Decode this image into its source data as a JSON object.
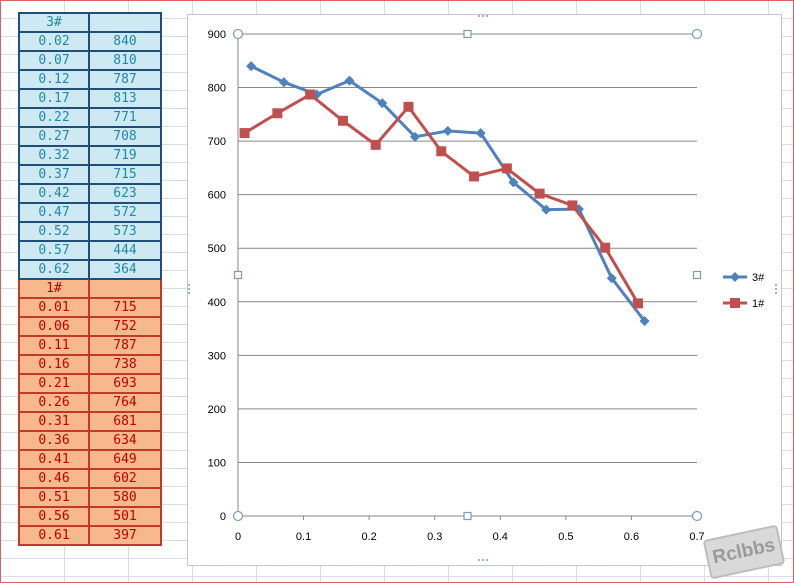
{
  "table": {
    "group3": {
      "header": "3#",
      "rows": [
        [
          "0.02",
          "840"
        ],
        [
          "0.07",
          "810"
        ],
        [
          "0.12",
          "787"
        ],
        [
          "0.17",
          "813"
        ],
        [
          "0.22",
          "771"
        ],
        [
          "0.27",
          "708"
        ],
        [
          "0.32",
          "719"
        ],
        [
          "0.37",
          "715"
        ],
        [
          "0.42",
          "623"
        ],
        [
          "0.47",
          "572"
        ],
        [
          "0.52",
          "573"
        ],
        [
          "0.57",
          "444"
        ],
        [
          "0.62",
          "364"
        ]
      ]
    },
    "group1": {
      "header": "1#",
      "rows": [
        [
          "0.01",
          "715"
        ],
        [
          "0.06",
          "752"
        ],
        [
          "0.11",
          "787"
        ],
        [
          "0.16",
          "738"
        ],
        [
          "0.21",
          "693"
        ],
        [
          "0.26",
          "764"
        ],
        [
          "0.31",
          "681"
        ],
        [
          "0.36",
          "634"
        ],
        [
          "0.41",
          "649"
        ],
        [
          "0.46",
          "602"
        ],
        [
          "0.51",
          "580"
        ],
        [
          "0.56",
          "501"
        ],
        [
          "0.61",
          "397"
        ]
      ]
    }
  },
  "chart_data": {
    "type": "line",
    "xlim": [
      0,
      0.7
    ],
    "ylim": [
      0,
      900
    ],
    "x_ticks": [
      "0",
      "0.1",
      "0.2",
      "0.3",
      "0.4",
      "0.5",
      "0.6",
      "0.7"
    ],
    "y_ticks": [
      "0",
      "100",
      "200",
      "300",
      "400",
      "500",
      "600",
      "700",
      "800",
      "900"
    ],
    "grid": "horizontal",
    "legend": "right",
    "series": [
      {
        "name": "3#",
        "color": "#4f81bd",
        "marker": "diamond",
        "x": [
          0.02,
          0.07,
          0.12,
          0.17,
          0.22,
          0.27,
          0.32,
          0.37,
          0.42,
          0.47,
          0.52,
          0.57,
          0.62
        ],
        "y": [
          840,
          810,
          787,
          813,
          771,
          708,
          719,
          715,
          623,
          572,
          573,
          444,
          364
        ]
      },
      {
        "name": "1#",
        "color": "#c0504d",
        "marker": "square",
        "x": [
          0.01,
          0.06,
          0.11,
          0.16,
          0.21,
          0.26,
          0.31,
          0.36,
          0.41,
          0.46,
          0.51,
          0.56,
          0.61
        ],
        "y": [
          715,
          752,
          787,
          738,
          693,
          764,
          681,
          634,
          649,
          602,
          580,
          501,
          397
        ]
      }
    ]
  },
  "watermark": "Rclbbs"
}
